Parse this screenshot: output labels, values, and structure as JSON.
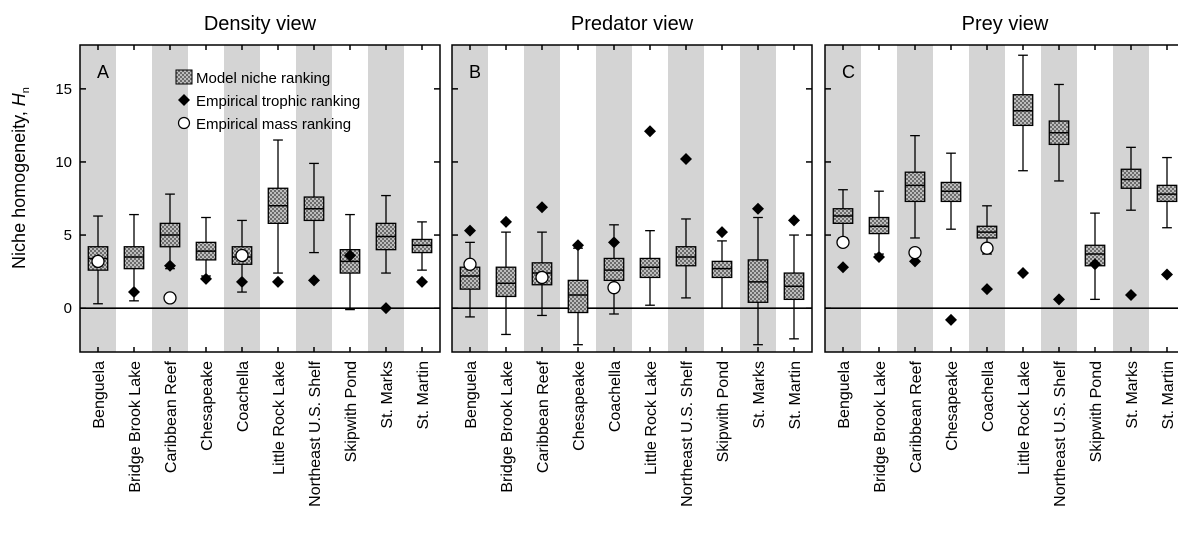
{
  "figure": {
    "y_axis_label": "Niche homogeneity, ",
    "y_axis_symbol": "H",
    "y_axis_subscript": "n",
    "legend": {
      "model": "Model niche ranking",
      "trophic": "Empirical trophic ranking",
      "mass": "Empirical mass ranking"
    }
  },
  "chart_data": [
    {
      "type": "box",
      "panel": "A",
      "title": "Density view",
      "ylabel": "Niche homogeneity, Hn",
      "ylim": [
        -3,
        18
      ],
      "yticks": [
        0,
        5,
        10,
        15
      ],
      "categories": [
        "Benguela",
        "Bridge Brook Lake",
        "Caribbean Reef",
        "Chesapeake",
        "Coachella",
        "Little Rock Lake",
        "Northeast U.S. Shelf",
        "Skipwith Pond",
        "St. Marks",
        "St. Martin"
      ],
      "model": [
        {
          "min": 0.3,
          "q1": 2.6,
          "median": 3.4,
          "q3": 4.2,
          "max": 6.3
        },
        {
          "min": 0.5,
          "q1": 2.7,
          "median": 3.5,
          "q3": 4.2,
          "max": 6.4
        },
        {
          "min": 2.7,
          "q1": 4.2,
          "median": 5.0,
          "q3": 5.8,
          "max": 7.8
        },
        {
          "min": 2.2,
          "q1": 3.3,
          "median": 3.9,
          "q3": 4.5,
          "max": 6.2
        },
        {
          "min": 1.1,
          "q1": 3.0,
          "median": 3.5,
          "q3": 4.2,
          "max": 6.0
        },
        {
          "min": 2.4,
          "q1": 5.8,
          "median": 7.0,
          "q3": 8.2,
          "max": 11.5
        },
        {
          "min": 3.8,
          "q1": 6.0,
          "median": 6.8,
          "q3": 7.6,
          "max": 9.9
        },
        {
          "min": -0.1,
          "q1": 2.4,
          "median": 3.2,
          "q3": 4.0,
          "max": 6.4
        },
        {
          "min": 2.4,
          "q1": 4.0,
          "median": 4.9,
          "q3": 5.8,
          "max": 7.7
        },
        {
          "min": 2.6,
          "q1": 3.8,
          "median": 4.3,
          "q3": 4.7,
          "max": 5.9
        }
      ],
      "empirical_trophic": [
        3.3,
        1.1,
        2.9,
        2.0,
        1.8,
        1.8,
        1.9,
        3.6,
        0.0,
        1.8
      ],
      "empirical_mass": [
        3.2,
        null,
        0.7,
        null,
        3.6,
        null,
        null,
        null,
        null,
        null
      ]
    },
    {
      "type": "box",
      "panel": "B",
      "title": "Predator view",
      "ylim": [
        -3,
        18
      ],
      "yticks": [
        0,
        5,
        10,
        15
      ],
      "categories": [
        "Benguela",
        "Bridge Brook Lake",
        "Caribbean Reef",
        "Chesapeake",
        "Coachella",
        "Little Rock Lake",
        "Northeast U.S. Shelf",
        "Skipwith Pond",
        "St. Marks",
        "St. Martin"
      ],
      "model": [
        {
          "min": -0.6,
          "q1": 1.3,
          "median": 2.2,
          "q3": 2.8,
          "max": 4.5
        },
        {
          "min": -1.8,
          "q1": 0.8,
          "median": 1.7,
          "q3": 2.8,
          "max": 5.2
        },
        {
          "min": -0.5,
          "q1": 1.6,
          "median": 2.4,
          "q3": 3.1,
          "max": 5.2
        },
        {
          "min": -2.5,
          "q1": -0.3,
          "median": 0.9,
          "q3": 1.9,
          "max": 4.1
        },
        {
          "min": -0.4,
          "q1": 1.9,
          "median": 2.6,
          "q3": 3.4,
          "max": 5.7
        },
        {
          "min": 0.2,
          "q1": 2.1,
          "median": 2.8,
          "q3": 3.4,
          "max": 5.3
        },
        {
          "min": 0.7,
          "q1": 2.9,
          "median": 3.5,
          "q3": 4.2,
          "max": 6.1
        },
        {
          "min": 0.0,
          "q1": 2.1,
          "median": 2.7,
          "q3": 3.2,
          "max": 4.6
        },
        {
          "min": -2.5,
          "q1": 0.4,
          "median": 1.8,
          "q3": 3.3,
          "max": 6.2
        },
        {
          "min": -2.1,
          "q1": 0.6,
          "median": 1.5,
          "q3": 2.4,
          "max": 5.0
        }
      ],
      "empirical_trophic": [
        5.3,
        5.9,
        6.9,
        4.3,
        4.5,
        12.1,
        10.2,
        5.2,
        6.8,
        6.0
      ],
      "empirical_mass": [
        3.0,
        null,
        2.1,
        null,
        1.4,
        null,
        null,
        null,
        null,
        null
      ]
    },
    {
      "type": "box",
      "panel": "C",
      "title": "Prey view",
      "ylim": [
        -3,
        18
      ],
      "yticks": [
        0,
        5,
        10,
        15
      ],
      "categories": [
        "Benguela",
        "Bridge Brook Lake",
        "Caribbean Reef",
        "Chesapeake",
        "Coachella",
        "Little Rock Lake",
        "Northeast U.S. Shelf",
        "Skipwith Pond",
        "St. Marks",
        "St. Martin"
      ],
      "model": [
        {
          "min": 4.8,
          "q1": 5.8,
          "median": 6.3,
          "q3": 6.8,
          "max": 8.1
        },
        {
          "min": 3.7,
          "q1": 5.1,
          "median": 5.6,
          "q3": 6.2,
          "max": 8.0
        },
        {
          "min": 4.8,
          "q1": 7.3,
          "median": 8.4,
          "q3": 9.3,
          "max": 11.8
        },
        {
          "min": 5.4,
          "q1": 7.3,
          "median": 8.0,
          "q3": 8.6,
          "max": 10.6
        },
        {
          "min": 3.7,
          "q1": 4.8,
          "median": 5.2,
          "q3": 5.6,
          "max": 7.0
        },
        {
          "min": 9.4,
          "q1": 12.5,
          "median": 13.5,
          "q3": 14.6,
          "max": 17.3
        },
        {
          "min": 8.7,
          "q1": 11.2,
          "median": 12.0,
          "q3": 12.8,
          "max": 15.3
        },
        {
          "min": 0.6,
          "q1": 2.9,
          "median": 3.7,
          "q3": 4.3,
          "max": 6.5
        },
        {
          "min": 6.7,
          "q1": 8.2,
          "median": 8.8,
          "q3": 9.5,
          "max": 11.0
        },
        {
          "min": 5.5,
          "q1": 7.3,
          "median": 7.8,
          "q3": 8.4,
          "max": 10.3
        }
      ],
      "empirical_trophic": [
        2.8,
        3.5,
        3.2,
        -0.8,
        1.3,
        2.4,
        0.6,
        3.0,
        0.9,
        2.3
      ],
      "empirical_mass": [
        4.5,
        null,
        3.8,
        null,
        4.1,
        null,
        null,
        null,
        null,
        null
      ]
    }
  ]
}
